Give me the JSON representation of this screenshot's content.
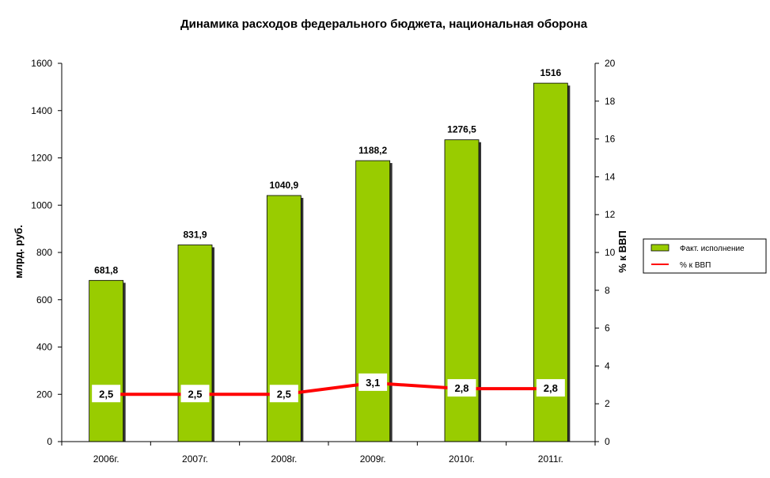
{
  "chart_data": {
    "type": "bar",
    "title": "Динамика расходов федерального бюджета, национальная оборона",
    "ylabel": "млрд. руб.",
    "y2label": "% к ВВП",
    "categories": [
      "2006г.",
      "2007г.",
      "2008г.",
      "2009г.",
      "2010г.",
      "2011г."
    ],
    "ylim": [
      0,
      1600
    ],
    "y_ticks": [
      0,
      200,
      400,
      600,
      800,
      1000,
      1200,
      1400,
      1600
    ],
    "y2lim": [
      0,
      20
    ],
    "y2_ticks": [
      0,
      2,
      4,
      6,
      8,
      10,
      12,
      14,
      16,
      18,
      20
    ],
    "series": [
      {
        "name": "Факт. исполнение",
        "type": "bar",
        "axis": "left",
        "color": "#99cc00",
        "values": [
          681.8,
          831.9,
          1040.9,
          1188.2,
          1276.5,
          1516
        ],
        "labels": [
          "681,8",
          "831,9",
          "1040,9",
          "1188,2",
          "1276,5",
          "1516"
        ]
      },
      {
        "name": "% к ВВП",
        "type": "line",
        "axis": "right",
        "color": "#ff0000",
        "values": [
          2.5,
          2.5,
          2.5,
          3.1,
          2.8,
          2.8
        ],
        "labels": [
          "2,5",
          "2,5",
          "2,5",
          "3,1",
          "2,8",
          "2,8"
        ]
      }
    ],
    "grid": false,
    "legend_position": "right"
  }
}
